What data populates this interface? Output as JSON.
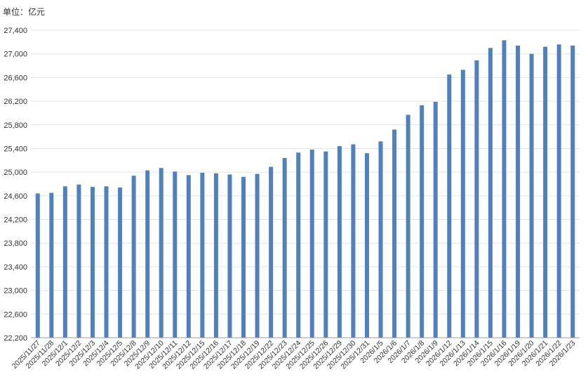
{
  "unit_label": "单位：亿元",
  "colors": {
    "bar": "#4f81bd",
    "grid": "#e4e4e4",
    "axis": "#999999",
    "text": "#333333"
  },
  "chart_data": {
    "type": "bar",
    "title": "",
    "unit": "单位：亿元",
    "xlabel": "",
    "ylabel": "",
    "ylim": [
      22200,
      27400
    ],
    "yticks": [
      22200,
      22600,
      23000,
      23400,
      23800,
      24200,
      24600,
      25000,
      25400,
      25800,
      26200,
      26600,
      27000,
      27400
    ],
    "ytick_labels": [
      "22,200",
      "22,600",
      "23,000",
      "23,400",
      "23,800",
      "24,200",
      "24,600",
      "25,000",
      "25,400",
      "25,800",
      "26,200",
      "26,600",
      "27,000",
      "27,400"
    ],
    "grid": true,
    "categories": [
      "2025/11/27",
      "2025/11/28",
      "2025/12/1",
      "2025/12/2",
      "2025/12/3",
      "2025/12/4",
      "2025/12/5",
      "2025/12/8",
      "2025/12/9",
      "2025/12/10",
      "2025/12/11",
      "2025/12/12",
      "2025/12/15",
      "2025/12/16",
      "2025/12/17",
      "2025/12/18",
      "2025/12/19",
      "2025/12/22",
      "2025/12/23",
      "2025/12/24",
      "2025/12/25",
      "2025/12/26",
      "2025/12/29",
      "2025/12/30",
      "2025/12/31",
      "2026/1/5",
      "2026/1/6",
      "2026/1/7",
      "2026/1/8",
      "2026/1/9",
      "2026/1/12",
      "2026/1/13",
      "2026/1/14",
      "2026/1/15",
      "2026/1/16",
      "2026/1/19",
      "2026/1/20",
      "2026/1/21",
      "2026/1/22",
      "2026/1/23"
    ],
    "values": [
      24640,
      24650,
      24760,
      24790,
      24750,
      24760,
      24740,
      24940,
      25030,
      25070,
      25010,
      24950,
      24990,
      24980,
      24960,
      24920,
      24970,
      25090,
      25240,
      25330,
      25380,
      25350,
      25440,
      25470,
      25320,
      25520,
      25720,
      25970,
      26130,
      26190,
      26650,
      26730,
      26890,
      27100,
      27230,
      27140,
      27000,
      27120,
      27160,
      27140
    ]
  }
}
